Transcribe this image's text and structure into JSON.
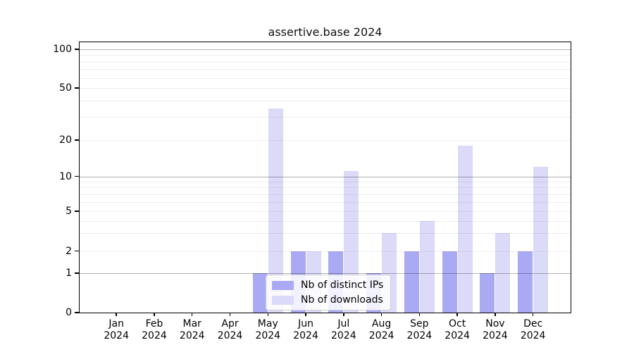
{
  "chart_data": {
    "type": "bar",
    "title": "assertive.base 2024",
    "x_categories": [
      "Jan",
      "Feb",
      "Mar",
      "Apr",
      "May",
      "Jun",
      "Jul",
      "Aug",
      "Sep",
      "Oct",
      "Nov",
      "Dec"
    ],
    "x_year": "2024",
    "series": [
      {
        "name": "Nb of distinct IPs",
        "color": "#aaa9f4",
        "values": [
          0,
          0,
          0,
          0,
          1,
          2,
          2,
          1,
          2,
          2,
          1,
          2
        ]
      },
      {
        "name": "Nb of downloads",
        "color": "#dbdaf8",
        "values": [
          0,
          0,
          0,
          0,
          35,
          2,
          11,
          3,
          4,
          18,
          3,
          12
        ]
      }
    ],
    "y_axis": {
      "scale": "symlog",
      "ticks": [
        0,
        1,
        2,
        5,
        10,
        20,
        50,
        100
      ],
      "major_gridlines": [
        1,
        10,
        100
      ],
      "minor_gridlines": [
        2,
        3,
        4,
        5,
        6,
        7,
        8,
        9,
        20,
        30,
        40,
        50,
        60,
        70,
        80,
        90
      ],
      "range": [
        0,
        100
      ]
    },
    "legend": {
      "position": "lower-center",
      "entries": [
        "Nb of distinct IPs",
        "Nb of downloads"
      ]
    },
    "grid": "on, drawn above bars"
  }
}
